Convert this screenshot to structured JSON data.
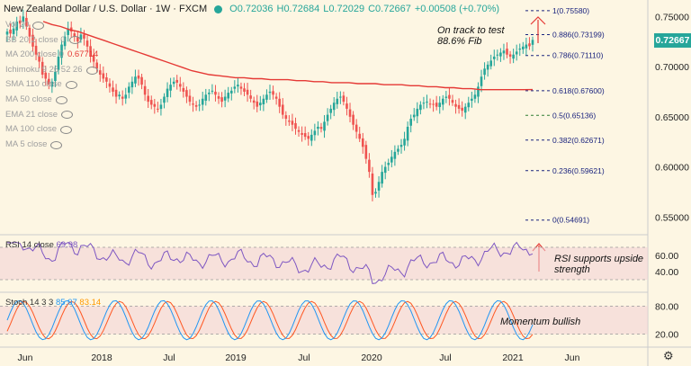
{
  "header": {
    "symbol": "New Zealand Dollar / U.S. Dollar · 1W · FXCM",
    "open": "O0.72036",
    "high": "H0.72684",
    "low": "L0.72029",
    "close": "C0.72667",
    "change": "+0.00508 (+0.70%)"
  },
  "indicators": [
    {
      "label": "Vol 20",
      "value": ""
    },
    {
      "label": "BB 20 2 close 0",
      "value": ""
    },
    {
      "label": "MA 200 close 0",
      "value": "0.67714"
    },
    {
      "label": "Ichimoku 9 26 52 26",
      "value": ""
    },
    {
      "label": "SMA 110 close",
      "value": ""
    },
    {
      "label": "MA 50 close",
      "value": ""
    },
    {
      "label": "EMA 21 close",
      "value": ""
    },
    {
      "label": "MA 100 close",
      "value": ""
    },
    {
      "label": "MA 5 close",
      "value": ""
    }
  ],
  "annotations": {
    "main": "On track to test 88.6% Fib",
    "rsi": "RSI supports upside strength",
    "stoch": "Momentum bullish"
  },
  "last_price": "0.72667",
  "rsi": {
    "label": "RSI 14 close",
    "value": "69.98"
  },
  "stoch": {
    "label": "Stoch 14 3 3",
    "k": "85.07",
    "d": "83.14"
  },
  "fib_labels": [
    "1(0.75580)",
    "0.886(0.73199)",
    "0.786(0.71110)",
    "0.618(0.67600)",
    "0.5(0.65136)",
    "0.382(0.62671)",
    "0.236(0.59621)",
    "0(0.54691)"
  ],
  "colors": {
    "background": "#fdf6e3",
    "candle_up": "#26a69a",
    "candle_down": "#ef5350",
    "ma200": "#e53935",
    "rsi_line": "#7e57c2",
    "stoch_k": "#2196f3",
    "stoch_d": "#ff5722",
    "fib_dash": "#1a237e",
    "fib_green": "#2e7d32",
    "band_fill": "#f3d0d6",
    "arrow": "#e53935"
  },
  "chart_data": {
    "type": "candlestick",
    "x_tick_labels": [
      "Jun",
      "2018",
      "Jul",
      "2019",
      "Jul",
      "2020",
      "Jul",
      "2021",
      "Jun"
    ],
    "price_ticks": [
      "0.75000",
      "0.70000",
      "0.65000",
      "0.60000",
      "0.55000"
    ],
    "rsi_ticks": [
      "60.00",
      "40.00"
    ],
    "stoch_ticks": [
      "80.00",
      "20.00"
    ],
    "ylim": [
      0.535,
      0.762
    ],
    "close_path": [
      0.735,
      0.733,
      0.738,
      0.745,
      0.743,
      0.75,
      0.74,
      0.73,
      0.72,
      0.712,
      0.705,
      0.692,
      0.688,
      0.682,
      0.685,
      0.695,
      0.71,
      0.722,
      0.73,
      0.738,
      0.735,
      0.73,
      0.725,
      0.732,
      0.728,
      0.72,
      0.71,
      0.705,
      0.698,
      0.692,
      0.688,
      0.685,
      0.68,
      0.675,
      0.67,
      0.672,
      0.668,
      0.672,
      0.68,
      0.685,
      0.69,
      0.688,
      0.682,
      0.672,
      0.665,
      0.662,
      0.66,
      0.658,
      0.662,
      0.67,
      0.678,
      0.682,
      0.685,
      0.684,
      0.68,
      0.675,
      0.67,
      0.665,
      0.662,
      0.66,
      0.662,
      0.668,
      0.672,
      0.674,
      0.676,
      0.672,
      0.668,
      0.665,
      0.67,
      0.674,
      0.676,
      0.68,
      0.682,
      0.678,
      0.675,
      0.672,
      0.668,
      0.664,
      0.66,
      0.664,
      0.668,
      0.672,
      0.675,
      0.672,
      0.668,
      0.66,
      0.652,
      0.648,
      0.645,
      0.642,
      0.638,
      0.635,
      0.632,
      0.63,
      0.628,
      0.632,
      0.636,
      0.64,
      0.638,
      0.645,
      0.652,
      0.658,
      0.664,
      0.668,
      0.67,
      0.665,
      0.658,
      0.65,
      0.642,
      0.635,
      0.628,
      0.62,
      0.608,
      0.595,
      0.572,
      0.575,
      0.585,
      0.595,
      0.6,
      0.604,
      0.61,
      0.615,
      0.618,
      0.622,
      0.628,
      0.64,
      0.648,
      0.652,
      0.658,
      0.662,
      0.664,
      0.665,
      0.663,
      0.662,
      0.66,
      0.664,
      0.668,
      0.67,
      0.668,
      0.664,
      0.66,
      0.658,
      0.656,
      0.66,
      0.664,
      0.668,
      0.672,
      0.68,
      0.69,
      0.698,
      0.702,
      0.706,
      0.71,
      0.712,
      0.714,
      0.716,
      0.712,
      0.71,
      0.712,
      0.715,
      0.718,
      0.72,
      0.722,
      0.72036,
      0.72667
    ],
    "ma200_path": [
      0.745,
      0.742,
      0.74,
      0.737,
      0.735,
      0.732,
      0.729,
      0.726,
      0.723,
      0.72,
      0.717,
      0.714,
      0.711,
      0.708,
      0.705,
      0.702,
      0.699,
      0.696,
      0.694,
      0.692,
      0.691,
      0.69,
      0.689,
      0.689,
      0.688,
      0.688,
      0.687,
      0.687,
      0.687,
      0.686,
      0.686,
      0.685,
      0.685,
      0.684,
      0.684,
      0.684,
      0.683,
      0.683,
      0.683,
      0.682,
      0.682,
      0.682,
      0.681,
      0.681,
      0.68,
      0.68,
      0.679,
      0.679,
      0.678,
      0.678,
      0.677,
      0.677,
      0.677,
      0.677,
      0.677,
      0.677,
      0.67714
    ]
  }
}
